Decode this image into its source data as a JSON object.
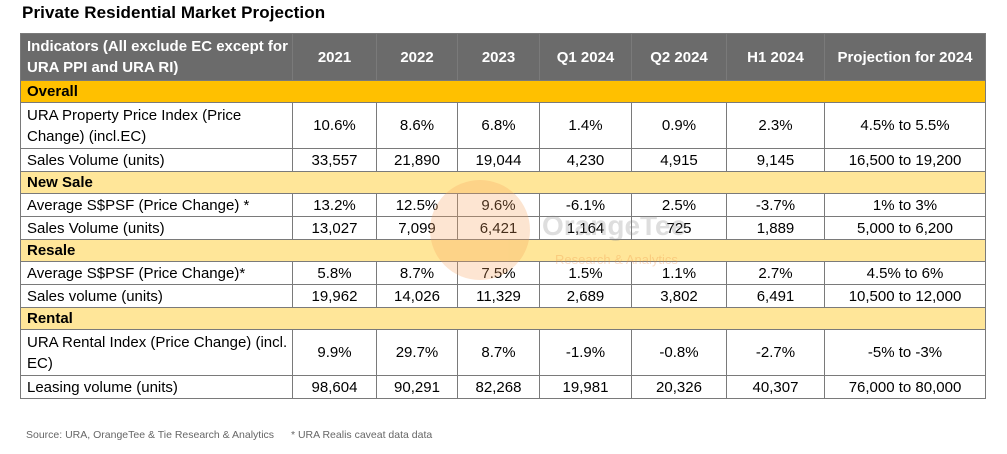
{
  "title": "Private Residential Market Projection",
  "headers": {
    "indicators": "Indicators (All exclude EC except for URA PPI and URA RI)",
    "c2021": "2021",
    "c2022": "2022",
    "c2023": "2023",
    "q1_2024": "Q1 2024",
    "q2_2024": "Q2 2024",
    "h1_2024": "H1 2024",
    "projection": "Projection for 2024"
  },
  "sections": {
    "overall": "Overall",
    "new_sale": "New Sale",
    "resale": "Resale",
    "rental": "Rental"
  },
  "rows": {
    "ppi": {
      "label": "URA Property Price Index (Price Change) (incl.EC)",
      "v": [
        "10.6%",
        "8.6%",
        "6.8%",
        "1.4%",
        "0.9%",
        "2.3%",
        "4.5% to 5.5%"
      ]
    },
    "overall_vol": {
      "label": "Sales Volume (units)",
      "v": [
        "33,557",
        "21,890",
        "19,044",
        "4,230",
        "4,915",
        "9,145",
        "16,500 to 19,200"
      ]
    },
    "ns_psf": {
      "label": "Average S$PSF (Price Change) *",
      "v": [
        "13.2%",
        "12.5%",
        "9.6%",
        "-6.1%",
        "2.5%",
        "-3.7%",
        "1% to 3%"
      ]
    },
    "ns_vol": {
      "label": "Sales Volume (units)",
      "v": [
        "13,027",
        "7,099",
        "6,421",
        "1,164",
        "725",
        "1,889",
        "5,000 to 6,200"
      ]
    },
    "rs_psf": {
      "label": "Average S$PSF (Price Change)*",
      "v": [
        "5.8%",
        "8.7%",
        "7.5%",
        "1.5%",
        "1.1%",
        "2.7%",
        "4.5% to 6%"
      ]
    },
    "rs_vol": {
      "label": "Sales volume (units)",
      "v": [
        "19,962",
        "14,026",
        "11,329",
        "2,689",
        "3,802",
        "6,491",
        "10,500 to 12,000"
      ]
    },
    "rri": {
      "label": "URA Rental Index (Price Change) (incl. EC)",
      "v": [
        "9.9%",
        "29.7%",
        "8.7%",
        "-1.9%",
        "-0.8%",
        "-2.7%",
        "-5% to -3%"
      ]
    },
    "lease_vol": {
      "label": "Leasing volume (units)",
      "v": [
        "98,604",
        "90,291",
        "82,268",
        "19,981",
        "20,326",
        "40,307",
        "76,000 to 80,000"
      ]
    }
  },
  "watermark": {
    "brand": "OrangeTee",
    "sub": "Research & Analytics"
  },
  "footer": {
    "source": "Source: URA, OrangeTee & Tie Research & Analytics",
    "note": "* URA Realis caveat data data"
  },
  "colors": {
    "header_bg": "#6b6b6b",
    "overall_bg": "#ffc000",
    "section_bg": "#ffe699"
  }
}
